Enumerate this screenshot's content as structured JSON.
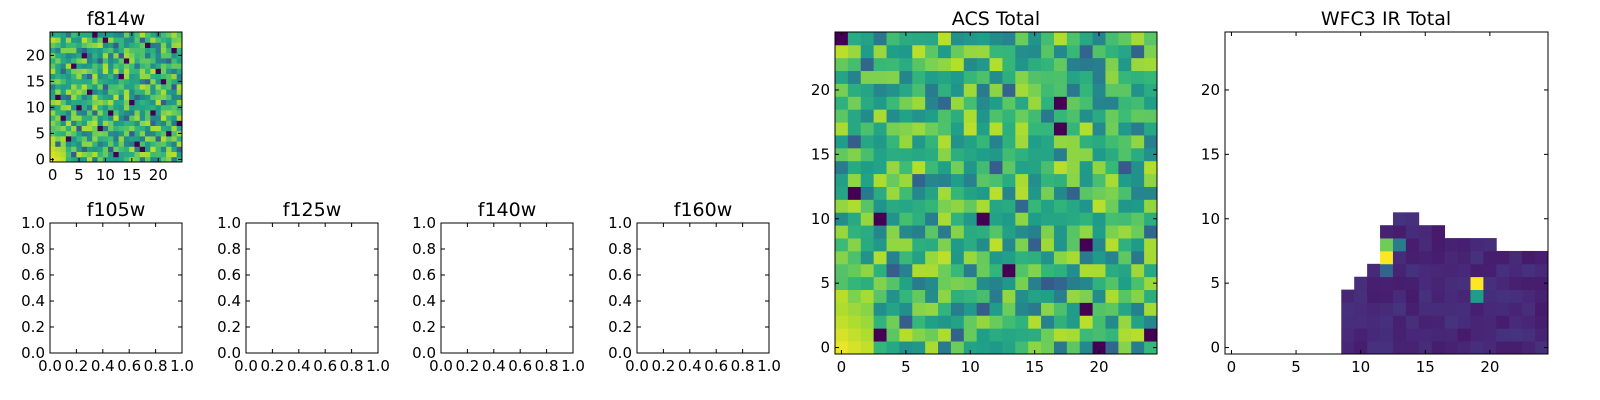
{
  "chart_data": [
    {
      "panel_id": "f814w",
      "type": "heatmap",
      "title": "f814w",
      "x_range": [
        -0.5,
        24.5
      ],
      "y_range": [
        -0.5,
        24.5
      ],
      "xticks": [
        0,
        5,
        10,
        15,
        20
      ],
      "yticks": [
        0,
        5,
        10,
        15,
        20
      ],
      "xtick_labels": [
        "0",
        "5",
        "10",
        "15",
        "20"
      ],
      "ytick_labels": [
        "0",
        "5",
        "10",
        "15",
        "20"
      ],
      "colormap": "viridis",
      "grid": 25,
      "pattern": "noise",
      "seed": 7,
      "bright_corner": "bottom-left",
      "value_range": [
        0.0,
        1.0
      ],
      "dark_cells": [
        [
          3,
          4
        ],
        [
          13,
          16
        ],
        [
          1,
          12
        ],
        [
          17,
          2
        ],
        [
          10,
          23
        ],
        [
          19,
          9
        ],
        [
          9,
          6
        ],
        [
          6,
          20
        ],
        [
          15,
          11
        ],
        [
          21,
          15
        ],
        [
          12,
          1
        ],
        [
          24,
          7
        ],
        [
          4,
          18
        ],
        [
          18,
          22
        ],
        [
          7,
          13
        ],
        [
          22,
          5
        ],
        [
          2,
          8
        ],
        [
          14,
          19
        ],
        [
          11,
          9
        ],
        [
          16,
          3
        ],
        [
          23,
          21
        ],
        [
          8,
          24
        ],
        [
          20,
          17
        ],
        [
          5,
          10
        ]
      ],
      "medium_dark_cells": [
        [
          1,
          3
        ],
        [
          5,
          6
        ],
        [
          8,
          9
        ],
        [
          11,
          2
        ],
        [
          14,
          8
        ],
        [
          16,
          12
        ],
        [
          18,
          15
        ],
        [
          20,
          4
        ],
        [
          22,
          19
        ],
        [
          2,
          17
        ],
        [
          6,
          21
        ],
        [
          10,
          14
        ],
        [
          13,
          20
        ],
        [
          17,
          23
        ],
        [
          21,
          11
        ],
        [
          24,
          2
        ],
        [
          3,
          12
        ],
        [
          7,
          16
        ],
        [
          12,
          22
        ],
        [
          15,
          5
        ],
        [
          19,
          7
        ],
        [
          23,
          14
        ],
        [
          9,
          19
        ],
        [
          4,
          1
        ],
        [
          6,
          2
        ]
      ]
    },
    {
      "panel_id": "f105w",
      "type": "heatmap",
      "title": "f105w",
      "x_range": [
        0.0,
        1.0
      ],
      "y_range": [
        0.0,
        1.0
      ],
      "xticks": [
        0,
        0.2,
        0.4,
        0.6,
        0.8,
        1.0
      ],
      "yticks": [
        0,
        0.2,
        0.4,
        0.6,
        0.8,
        1.0
      ],
      "xtick_labels": [
        "0.0",
        "0.2",
        "0.4",
        "0.6",
        "0.8",
        "1.0"
      ],
      "ytick_labels": [
        "0.0",
        "0.2",
        "0.4",
        "0.6",
        "0.8",
        "1.0"
      ]
    },
    {
      "panel_id": "f125w",
      "type": "heatmap",
      "title": "f125w",
      "x_range": [
        0.0,
        1.0
      ],
      "y_range": [
        0.0,
        1.0
      ],
      "xticks": [
        0,
        0.2,
        0.4,
        0.6,
        0.8,
        1.0
      ],
      "yticks": [
        0,
        0.2,
        0.4,
        0.6,
        0.8,
        1.0
      ],
      "xtick_labels": [
        "0.0",
        "0.2",
        "0.4",
        "0.6",
        "0.8",
        "1.0"
      ],
      "ytick_labels": [
        "0.0",
        "0.2",
        "0.4",
        "0.6",
        "0.8",
        "1.0"
      ]
    },
    {
      "panel_id": "f140w",
      "type": "heatmap",
      "title": "f140w",
      "x_range": [
        0.0,
        1.0
      ],
      "y_range": [
        0.0,
        1.0
      ],
      "xticks": [
        0,
        0.2,
        0.4,
        0.6,
        0.8,
        1.0
      ],
      "yticks": [
        0,
        0.2,
        0.4,
        0.6,
        0.8,
        1.0
      ],
      "xtick_labels": [
        "0.0",
        "0.2",
        "0.4",
        "0.6",
        "0.8",
        "1.0"
      ],
      "ytick_labels": [
        "0.0",
        "0.2",
        "0.4",
        "0.6",
        "0.8",
        "1.0"
      ]
    },
    {
      "panel_id": "f160w",
      "type": "heatmap",
      "title": "f160w",
      "x_range": [
        0.0,
        1.0
      ],
      "y_range": [
        0.0,
        1.0
      ],
      "xticks": [
        0,
        0.2,
        0.4,
        0.6,
        0.8,
        1.0
      ],
      "yticks": [
        0,
        0.2,
        0.4,
        0.6,
        0.8,
        1.0
      ],
      "xtick_labels": [
        "0.0",
        "0.2",
        "0.4",
        "0.6",
        "0.8",
        "1.0"
      ],
      "ytick_labels": [
        "0.0",
        "0.2",
        "0.4",
        "0.6",
        "0.8",
        "1.0"
      ]
    },
    {
      "panel_id": "acs_total",
      "type": "heatmap",
      "title": "ACS Total",
      "x_range": [
        -0.5,
        24.5
      ],
      "y_range": [
        -0.5,
        24.5
      ],
      "xticks": [
        0,
        5,
        10,
        15,
        20
      ],
      "yticks": [
        0,
        5,
        10,
        15,
        20
      ],
      "xtick_labels": [
        "0",
        "5",
        "10",
        "15",
        "20"
      ],
      "ytick_labels": [
        "0",
        "5",
        "10",
        "15",
        "20"
      ],
      "colormap": "viridis",
      "grid": 25,
      "pattern": "noise",
      "seed": 7,
      "bright_corner": "bottom-left",
      "value_range": [
        0.0,
        1.0
      ],
      "dark_cells": [
        [
          17,
          19
        ],
        [
          17,
          17
        ],
        [
          1,
          12
        ],
        [
          19,
          8
        ],
        [
          19,
          3
        ],
        [
          13,
          6
        ],
        [
          24,
          1
        ],
        [
          20,
          0
        ],
        [
          11,
          10
        ],
        [
          3,
          1
        ],
        [
          0,
          24
        ],
        [
          3,
          10
        ]
      ],
      "medium_dark_cells": [
        [
          2,
          22
        ],
        [
          16,
          5
        ],
        [
          8,
          19
        ],
        [
          12,
          14
        ],
        [
          15,
          8
        ],
        [
          24,
          9
        ],
        [
          23,
          23
        ],
        [
          19,
          23
        ],
        [
          17,
          5
        ],
        [
          21,
          0
        ],
        [
          6,
          13
        ],
        [
          11,
          3
        ],
        [
          22,
          14
        ],
        [
          13,
          20
        ],
        [
          5,
          2
        ],
        [
          9,
          1
        ],
        [
          14,
          11
        ],
        [
          18,
          12
        ],
        [
          4,
          6
        ],
        [
          1,
          16
        ]
      ]
    },
    {
      "panel_id": "wfc3_ir_total",
      "type": "heatmap",
      "title": "WFC3 IR Total",
      "x_range": [
        -0.5,
        24.5
      ],
      "y_range": [
        -0.5,
        24.5
      ],
      "xticks": [
        0,
        5,
        10,
        15,
        20
      ],
      "yticks": [
        0,
        5,
        10,
        15,
        20
      ],
      "xtick_labels": [
        "0",
        "5",
        "10",
        "15",
        "20"
      ],
      "ytick_labels": [
        "0",
        "5",
        "10",
        "15",
        "20"
      ],
      "colormap": "viridis",
      "grid": 25,
      "pattern": "mask",
      "seed": 3,
      "value_range": [
        0.0,
        1.0
      ],
      "mask_columns": {
        "9": [
          0,
          4
        ],
        "10": [
          0,
          5
        ],
        "11": [
          0,
          6
        ],
        "12": [
          0,
          9
        ],
        "13": [
          0,
          10
        ],
        "14": [
          0,
          10
        ],
        "15": [
          0,
          9
        ],
        "16": [
          0,
          9
        ],
        "17": [
          0,
          8
        ],
        "18": [
          0,
          8
        ],
        "19": [
          0,
          8
        ],
        "20": [
          0,
          8
        ],
        "21": [
          0,
          7
        ],
        "22": [
          0,
          7
        ],
        "23": [
          0,
          7
        ],
        "24": [
          0,
          7
        ]
      },
      "bright_cells": [
        [
          12,
          7,
          1.0
        ],
        [
          12,
          8,
          0.78
        ],
        [
          19,
          5,
          1.0
        ],
        [
          19,
          4,
          0.55
        ],
        [
          13,
          8,
          0.42
        ],
        [
          12,
          6,
          0.32
        ]
      ]
    }
  ]
}
